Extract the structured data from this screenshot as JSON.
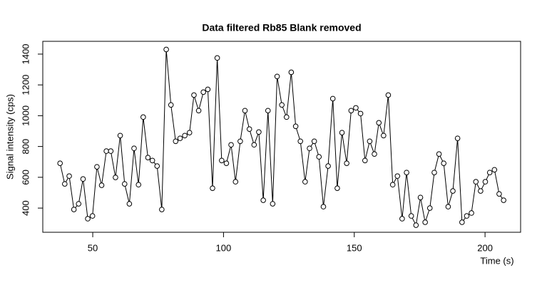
{
  "chart_data": {
    "type": "line",
    "title": "Data filtered Rb85 Blank removed",
    "x_label": "Time (s)",
    "y_label": "Signal intensity (cps)",
    "xlim": [
      30.9,
      213.6
    ],
    "ylim": [
      243,
      1483
    ],
    "xticks": [
      50,
      100,
      150,
      200
    ],
    "yticks": [
      400,
      600,
      800,
      1000,
      1200,
      1400
    ],
    "color": "#000000",
    "markers": true,
    "x": [
      37.5,
      39.3,
      41.0,
      42.8,
      44.6,
      46.3,
      48.1,
      49.9,
      51.6,
      53.4,
      55.2,
      56.9,
      58.7,
      60.5,
      62.2,
      64.0,
      65.8,
      67.5,
      69.3,
      71.1,
      72.8,
      74.6,
      76.4,
      78.1,
      79.9,
      81.7,
      83.4,
      85.2,
      87.0,
      88.7,
      90.5,
      92.3,
      94.0,
      95.8,
      97.6,
      99.3,
      101.1,
      102.9,
      104.6,
      106.4,
      108.2,
      109.9,
      111.7,
      113.5,
      115.2,
      117.0,
      118.8,
      120.5,
      122.3,
      124.1,
      125.9,
      127.6,
      129.4,
      131.2,
      132.9,
      134.7,
      136.5,
      138.2,
      140.0,
      141.8,
      143.5,
      145.3,
      147.1,
      148.8,
      150.6,
      152.4,
      154.1,
      155.9,
      157.7,
      159.4,
      161.2,
      163.0,
      164.7,
      166.5,
      168.3,
      170.0,
      171.8,
      173.6,
      175.3,
      177.1,
      178.9,
      180.6,
      182.4,
      184.2,
      185.9,
      187.7,
      189.5,
      191.2,
      193.0,
      194.8,
      196.5,
      198.3,
      200.1,
      201.8,
      203.6,
      205.4,
      207.1
    ],
    "values": [
      691,
      557,
      608,
      391,
      428,
      589,
      331,
      349,
      668,
      548,
      770,
      770,
      599,
      871,
      557,
      428,
      788,
      552,
      991,
      728,
      709,
      673,
      391,
      1430,
      1070,
      834,
      853,
      871,
      890,
      1134,
      1033,
      1153,
      1171,
      529,
      1375,
      709,
      691,
      811,
      571,
      834,
      1033,
      913,
      811,
      894,
      451,
      1033,
      428,
      1255,
      1070,
      991,
      1282,
      931,
      834,
      571,
      788,
      834,
      733,
      409,
      673,
      1111,
      529,
      890,
      691,
      1033,
      1051,
      1014,
      709,
      834,
      751,
      954,
      871,
      1134,
      552,
      608,
      331,
      631,
      349,
      289,
      469,
      308,
      400,
      631,
      751,
      691,
      409,
      511,
      853,
      308,
      349,
      368,
      571,
      511,
      571,
      631,
      649,
      492,
      451
    ]
  }
}
